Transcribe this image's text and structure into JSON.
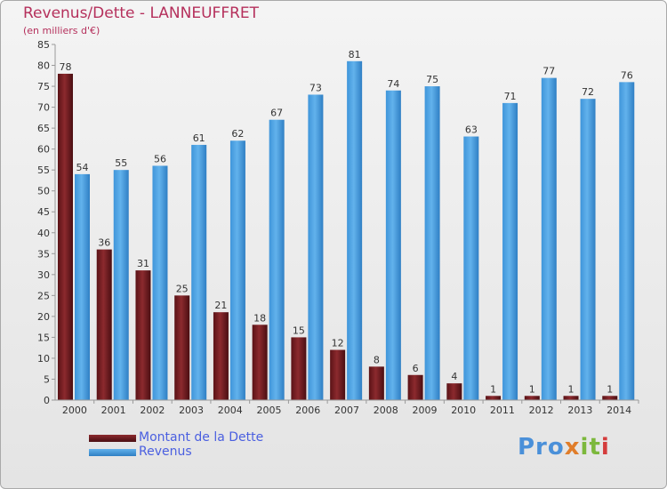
{
  "header": {
    "title": "Revenus/Dette - LANNEUFFRET",
    "subtitle": "(en milliers d'€)"
  },
  "legend": {
    "debt_label": "Montant de la Dette",
    "revenue_label": "Revenus"
  },
  "logo": {
    "text": "Proxiti"
  },
  "colors": {
    "debt": "#7a1e22",
    "revenue": "#4a9fe0",
    "title": "#b5305c",
    "legend_text": "#4a5fe0"
  },
  "chart_data": {
    "type": "bar",
    "categories": [
      "2000",
      "2001",
      "2002",
      "2003",
      "2004",
      "2005",
      "2006",
      "2007",
      "2008",
      "2009",
      "2010",
      "2011",
      "2012",
      "2013",
      "2014"
    ],
    "series": [
      {
        "name": "Montant de la Dette",
        "values": [
          78,
          36,
          31,
          25,
          21,
          18,
          15,
          12,
          8,
          6,
          4,
          1,
          1,
          1,
          1
        ]
      },
      {
        "name": "Revenus",
        "values": [
          54,
          55,
          56,
          61,
          62,
          67,
          73,
          81,
          74,
          75,
          63,
          71,
          77,
          72,
          76
        ]
      }
    ],
    "title": "Revenus/Dette - LANNEUFFRET",
    "ylabel": "(en milliers d'€)",
    "ylim": [
      0,
      85
    ],
    "ytick_step": 5,
    "grid": false,
    "legend_position": "bottom-left"
  }
}
